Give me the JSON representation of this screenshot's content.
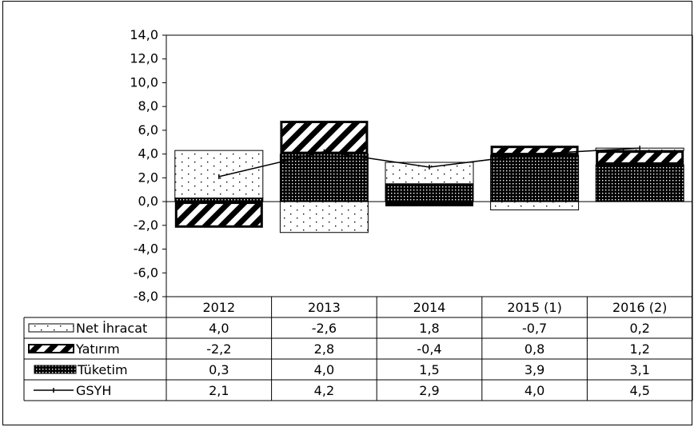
{
  "chart_data": {
    "type": "bar",
    "stacked": true,
    "categories": [
      "2012",
      "2013",
      "2014",
      "2015 (1)",
      "2016 (2)"
    ],
    "series": [
      {
        "name": "Net İhracat",
        "kind": "bar",
        "pattern": "dots",
        "values": [
          4.0,
          -2.6,
          1.8,
          -0.7,
          0.2
        ],
        "labels": [
          "4,0",
          "-2,6",
          "1,8",
          "-0,7",
          "0,2"
        ]
      },
      {
        "name": "Yatırım",
        "kind": "bar",
        "pattern": "hatch",
        "values": [
          -2.2,
          2.8,
          -0.4,
          0.8,
          1.2
        ],
        "labels": [
          "-2,2",
          "2,8",
          "-0,4",
          "0,8",
          "1,2"
        ]
      },
      {
        "name": "Tüketim",
        "kind": "bar",
        "pattern": "dense",
        "values": [
          0.3,
          4.0,
          1.5,
          3.9,
          3.1
        ],
        "labels": [
          "0,3",
          "4,0",
          "1,5",
          "3,9",
          "3,1"
        ]
      },
      {
        "name": "GSYH",
        "kind": "line",
        "values": [
          2.1,
          4.2,
          2.9,
          4.0,
          4.5
        ],
        "labels": [
          "2,1",
          "4,2",
          "2,9",
          "4,0",
          "4,5"
        ]
      }
    ],
    "ylim": [
      -8,
      14
    ],
    "yticks": [
      "14,0",
      "12,0",
      "10,0",
      "8,0",
      "6,0",
      "4,0",
      "2,0",
      "0,0",
      "-2,0",
      "-4,0",
      "-6,0",
      "-8,0"
    ],
    "ytick_values": [
      14,
      12,
      10,
      8,
      6,
      4,
      2,
      0,
      -2,
      -4,
      -6,
      -8
    ],
    "legend": "data-table",
    "title": "",
    "xlabel": "",
    "ylabel": ""
  }
}
